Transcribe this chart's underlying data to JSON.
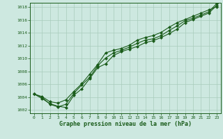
{
  "xlabel": "Graphe pression niveau de la mer (hPa)",
  "ylabel": "",
  "bg_color": "#cde8e0",
  "grid_color": "#a8ccbc",
  "line_color": "#1a5c1a",
  "marker": "D",
  "markersize": 2.0,
  "linewidth": 0.8,
  "ylim": [
    1001.5,
    1018.7
  ],
  "xlim": [
    -0.5,
    23.5
  ],
  "yticks": [
    1002,
    1004,
    1006,
    1008,
    1010,
    1012,
    1014,
    1016,
    1018
  ],
  "xticks": [
    0,
    1,
    2,
    3,
    4,
    5,
    6,
    7,
    8,
    9,
    10,
    11,
    12,
    13,
    14,
    15,
    16,
    17,
    18,
    19,
    20,
    21,
    22,
    23
  ],
  "series": [
    [
      1004.5,
      1003.8,
      1003.0,
      1002.6,
      1002.4,
      1004.3,
      1005.3,
      1006.9,
      1008.6,
      1009.2,
      1010.5,
      1011.1,
      1011.5,
      1011.9,
      1012.5,
      1012.8,
      1013.3,
      1013.9,
      1014.6,
      1015.6,
      1016.1,
      1016.6,
      1017.1,
      1018.3
    ],
    [
      1004.5,
      1004.1,
      1003.3,
      1003.1,
      1003.6,
      1004.9,
      1006.1,
      1007.6,
      1009.1,
      1010.9,
      1011.3,
      1011.6,
      1012.1,
      1012.9,
      1013.3,
      1013.6,
      1014.1,
      1014.9,
      1015.6,
      1016.1,
      1016.6,
      1017.1,
      1017.6,
      1018.1
    ],
    [
      1004.5,
      1004.0,
      1002.9,
      1002.5,
      1002.9,
      1004.6,
      1005.9,
      1007.1,
      1008.9,
      1010.1,
      1010.9,
      1011.3,
      1011.8,
      1012.4,
      1012.9,
      1013.1,
      1013.6,
      1014.4,
      1015.1,
      1015.9,
      1016.3,
      1016.8,
      1017.3,
      1018.6
    ]
  ]
}
